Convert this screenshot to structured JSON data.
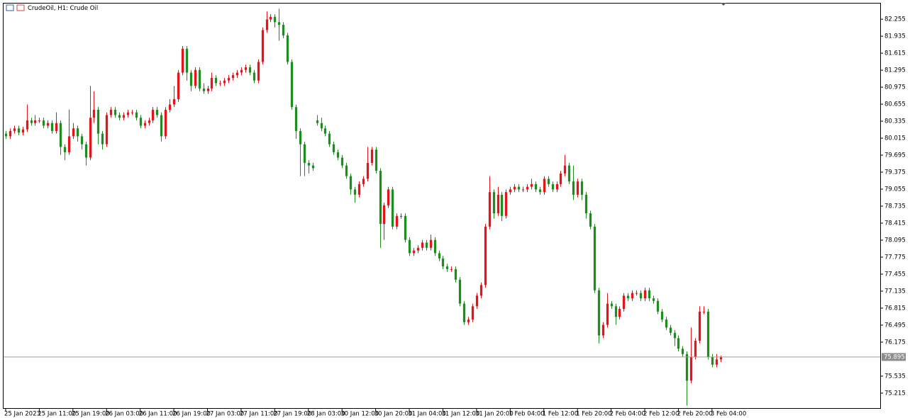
{
  "chart_data": {
    "type": "candlestick",
    "title": "CrudeOil, H1:  Crude Oil",
    "up_color": "#e5141b",
    "down_color": "#1e8c1e",
    "grid": false,
    "ylim": [
      74.92,
      82.55
    ],
    "yticks": [
      75.215,
      75.535,
      76.175,
      76.495,
      76.815,
      77.135,
      77.455,
      77.775,
      78.095,
      78.415,
      78.735,
      79.055,
      79.375,
      79.695,
      80.015,
      80.335,
      80.655,
      80.975,
      81.295,
      81.615,
      81.935,
      82.255
    ],
    "last_price": 75.895,
    "xlim": [
      -0.5,
      208
    ],
    "xticks": [
      {
        "value": 0,
        "label": "25 Jan 2023"
      },
      {
        "value": 8,
        "label": "25 Jan 11:00"
      },
      {
        "value": 16,
        "label": "25 Jan 19:00"
      },
      {
        "value": 24,
        "label": "26 Jan 03:00"
      },
      {
        "value": 32,
        "label": "26 Jan 11:00"
      },
      {
        "value": 40,
        "label": "26 Jan 19:00"
      },
      {
        "value": 48,
        "label": "27 Jan 03:00"
      },
      {
        "value": 56,
        "label": "27 Jan 11:00"
      },
      {
        "value": 64,
        "label": "27 Jan 19:00"
      },
      {
        "value": 72,
        "label": "28 Jan 03:00"
      },
      {
        "value": 80,
        "label": "30 Jan 12:00"
      },
      {
        "value": 88,
        "label": "30 Jan 20:00"
      },
      {
        "value": 96,
        "label": "31 Jan 04:00"
      },
      {
        "value": 104,
        "label": "31 Jan 12:00"
      },
      {
        "value": 112,
        "label": "31 Jan 20:00"
      },
      {
        "value": 120,
        "label": "1 Feb 04:00"
      },
      {
        "value": 128,
        "label": "1 Feb 12:00"
      },
      {
        "value": 136,
        "label": "1 Feb 20:00"
      },
      {
        "value": 144,
        "label": "2 Feb 04:00"
      },
      {
        "value": 152,
        "label": "2 Feb 12:00"
      },
      {
        "value": 160,
        "label": "2 Feb 20:00"
      },
      {
        "value": 168,
        "label": "3 Feb 04:00"
      }
    ],
    "open": [
      80.1,
      80.05,
      80.15,
      80.2,
      80.12,
      80.18,
      80.35,
      80.3,
      80.35,
      80.35,
      80.25,
      80.3,
      80.15,
      80.3,
      79.85,
      79.75,
      80.05,
      80.2,
      80.05,
      79.9,
      79.65,
      80.4,
      80.55,
      80.1,
      79.9,
      80.45,
      80.55,
      80.45,
      80.4,
      80.45,
      80.5,
      80.5,
      80.4,
      80.25,
      80.3,
      80.35,
      80.55,
      80.45,
      80.05,
      80.55,
      80.65,
      80.75,
      81.25,
      81.7,
      81.25,
      81.0,
      81.3,
      80.95,
      80.9,
      80.95,
      81.15,
      81.05,
      81.05,
      81.1,
      81.15,
      81.2,
      81.25,
      81.3,
      81.35,
      81.25,
      81.1,
      81.45,
      82.05,
      82.25,
      82.3,
      82.2,
      82.15,
      81.95,
      81.45,
      80.6,
      80.15,
      79.9,
      79.55,
      79.5,
      80.35,
      80.3,
      80.2,
      80.1,
      79.9,
      79.75,
      79.65,
      79.5,
      79.3,
      79.05,
      78.95,
      79.15,
      79.25,
      79.55,
      79.8,
      79.4,
      78.4,
      78.75,
      79.05,
      78.35,
      78.55,
      78.55,
      78.1,
      77.85,
      77.9,
      77.95,
      78.05,
      77.95,
      78.1,
      77.85,
      77.75,
      77.6,
      77.55,
      77.55,
      77.35,
      76.9,
      76.55,
      76.6,
      76.85,
      77.05,
      77.25,
      78.35,
      79.0,
      78.6,
      78.95,
      78.55,
      79.0,
      79.05,
      79.1,
      79.05,
      79.05,
      79.1,
      79.15,
      79.05,
      79.0,
      79.25,
      79.15,
      79.05,
      79.15,
      79.35,
      79.5,
      79.2,
      78.95,
      79.2,
      78.95,
      78.6,
      78.35,
      77.15,
      76.3,
      76.5,
      76.9,
      76.85,
      76.65,
      76.8,
      77.05,
      77.0,
      77.1,
      77.1,
      77.0,
      77.15,
      77.0,
      76.95,
      76.75,
      76.6,
      76.45,
      76.35,
      76.25,
      76.05,
      75.95,
      75.45,
      75.9,
      76.2,
      76.75,
      76.75,
      75.9,
      75.75,
      75.85
    ],
    "high": [
      80.15,
      80.2,
      80.25,
      80.25,
      80.23,
      80.65,
      80.4,
      80.45,
      80.4,
      80.4,
      80.35,
      80.35,
      80.5,
      80.35,
      79.9,
      80.55,
      80.3,
      80.25,
      80.1,
      79.95,
      81.0,
      80.9,
      80.6,
      80.15,
      80.5,
      80.6,
      80.6,
      80.5,
      80.5,
      80.55,
      80.55,
      80.55,
      80.45,
      80.35,
      80.4,
      80.6,
      80.6,
      80.5,
      80.6,
      80.75,
      81.0,
      81.3,
      81.75,
      81.75,
      81.3,
      81.35,
      81.35,
      81.05,
      81.0,
      81.25,
      81.2,
      81.1,
      81.15,
      81.2,
      81.25,
      81.3,
      81.35,
      81.4,
      81.4,
      81.3,
      81.5,
      82.1,
      82.4,
      82.35,
      82.35,
      82.45,
      82.2,
      82.0,
      81.5,
      80.65,
      80.2,
      79.95,
      79.6,
      79.55,
      80.45,
      80.4,
      80.25,
      80.15,
      79.95,
      79.8,
      79.7,
      79.55,
      79.35,
      79.1,
      79.2,
      79.3,
      79.85,
      79.85,
      79.85,
      79.45,
      78.8,
      79.1,
      79.1,
      78.6,
      78.6,
      78.6,
      78.15,
      77.95,
      78.0,
      78.1,
      78.1,
      78.2,
      78.15,
      77.9,
      77.8,
      77.65,
      77.6,
      77.6,
      77.4,
      76.95,
      76.65,
      76.9,
      77.1,
      77.3,
      78.4,
      79.3,
      79.05,
      79.1,
      79.0,
      79.05,
      79.1,
      79.15,
      79.15,
      79.1,
      79.15,
      79.25,
      79.2,
      79.1,
      79.3,
      79.3,
      79.2,
      79.2,
      79.4,
      79.7,
      79.55,
      79.5,
      79.25,
      79.25,
      79.0,
      78.65,
      78.4,
      77.2,
      76.55,
      77.1,
      76.95,
      76.9,
      76.85,
      77.1,
      77.1,
      77.15,
      77.15,
      77.15,
      77.2,
      77.2,
      77.05,
      77.0,
      76.8,
      76.65,
      76.5,
      76.4,
      76.3,
      76.1,
      76.0,
      76.45,
      76.25,
      76.85,
      76.85,
      76.8,
      75.95,
      75.95,
      75.92
    ],
    "low": [
      80.0,
      80.0,
      80.1,
      80.07,
      80.07,
      80.13,
      80.25,
      80.25,
      80.3,
      80.2,
      80.2,
      80.1,
      80.1,
      79.7,
      79.6,
      79.7,
      80.0,
      79.95,
      79.8,
      79.5,
      79.6,
      80.3,
      79.9,
      79.8,
      79.85,
      80.4,
      80.4,
      80.35,
      80.35,
      80.4,
      80.45,
      80.35,
      80.2,
      80.2,
      80.25,
      80.3,
      80.4,
      79.95,
      80.0,
      80.5,
      80.6,
      80.7,
      81.2,
      81.1,
      80.9,
      80.95,
      80.9,
      80.85,
      80.85,
      80.9,
      81.0,
      81.0,
      81.0,
      81.05,
      81.1,
      81.15,
      81.2,
      81.25,
      81.2,
      81.05,
      81.05,
      81.4,
      82.0,
      82.2,
      82.1,
      81.85,
      81.9,
      81.4,
      80.55,
      80.0,
      79.3,
      79.3,
      79.35,
      79.4,
      80.25,
      80.15,
      80.05,
      79.85,
      79.7,
      79.6,
      79.45,
      79.25,
      78.95,
      78.8,
      78.9,
      79.1,
      79.2,
      79.5,
      79.35,
      77.95,
      78.1,
      78.7,
      78.3,
      78.3,
      78.5,
      78.05,
      77.8,
      77.8,
      77.85,
      77.9,
      77.9,
      77.9,
      77.8,
      77.7,
      77.55,
      77.5,
      77.5,
      77.3,
      76.85,
      76.5,
      76.5,
      76.55,
      76.8,
      77.0,
      77.2,
      78.3,
      78.5,
      78.55,
      78.45,
      78.5,
      78.95,
      79.0,
      79.0,
      79.0,
      79.0,
      79.05,
      79.0,
      78.95,
      78.95,
      79.1,
      79.0,
      79.0,
      79.1,
      79.3,
      79.15,
      78.85,
      78.9,
      78.85,
      78.5,
      78.3,
      77.1,
      76.15,
      76.25,
      76.45,
      76.8,
      76.5,
      76.6,
      76.75,
      76.95,
      76.95,
      77.05,
      76.95,
      76.95,
      76.95,
      76.9,
      76.7,
      76.55,
      76.4,
      76.3,
      76.1,
      76.0,
      75.9,
      74.98,
      75.4,
      75.85,
      76.15,
      76.7,
      75.85,
      75.7,
      75.7,
      75.8
    ],
    "close": [
      80.05,
      80.15,
      80.2,
      80.12,
      80.18,
      80.35,
      80.3,
      80.35,
      80.35,
      80.25,
      80.3,
      80.15,
      80.3,
      79.85,
      79.75,
      80.05,
      80.2,
      80.05,
      79.9,
      79.65,
      80.4,
      80.55,
      80.1,
      79.9,
      80.45,
      80.55,
      80.45,
      80.4,
      80.45,
      80.5,
      80.5,
      80.4,
      80.25,
      80.3,
      80.35,
      80.55,
      80.45,
      80.05,
      80.55,
      80.65,
      80.75,
      81.25,
      81.7,
      81.25,
      81.0,
      81.3,
      80.95,
      80.9,
      80.95,
      81.15,
      81.05,
      81.05,
      81.1,
      81.15,
      81.2,
      81.25,
      81.3,
      81.35,
      81.25,
      81.1,
      81.45,
      82.05,
      82.25,
      82.3,
      82.2,
      82.15,
      81.95,
      81.45,
      80.6,
      80.15,
      79.9,
      79.55,
      79.5,
      79.45,
      80.3,
      80.2,
      80.1,
      79.9,
      79.75,
      79.65,
      79.5,
      79.3,
      79.05,
      78.95,
      79.15,
      79.25,
      79.55,
      79.8,
      79.4,
      78.4,
      78.75,
      79.05,
      78.35,
      78.55,
      78.55,
      78.1,
      77.85,
      77.9,
      77.95,
      78.05,
      77.95,
      78.1,
      77.85,
      77.75,
      77.6,
      77.55,
      77.55,
      77.35,
      76.9,
      76.55,
      76.6,
      76.85,
      77.05,
      77.25,
      78.35,
      79.0,
      78.6,
      78.95,
      78.55,
      79.0,
      79.05,
      79.1,
      79.05,
      79.05,
      79.1,
      79.15,
      79.05,
      79.0,
      79.25,
      79.15,
      79.05,
      79.15,
      79.35,
      79.5,
      79.2,
      78.95,
      79.2,
      78.95,
      78.6,
      78.35,
      77.15,
      76.3,
      76.5,
      76.9,
      76.85,
      76.65,
      76.8,
      77.05,
      77.0,
      77.1,
      77.1,
      77.0,
      77.15,
      77.0,
      76.95,
      76.75,
      76.6,
      76.45,
      76.35,
      76.25,
      76.05,
      75.95,
      75.45,
      75.9,
      76.2,
      76.75,
      76.75,
      75.9,
      75.75,
      75.85,
      75.895
    ]
  }
}
